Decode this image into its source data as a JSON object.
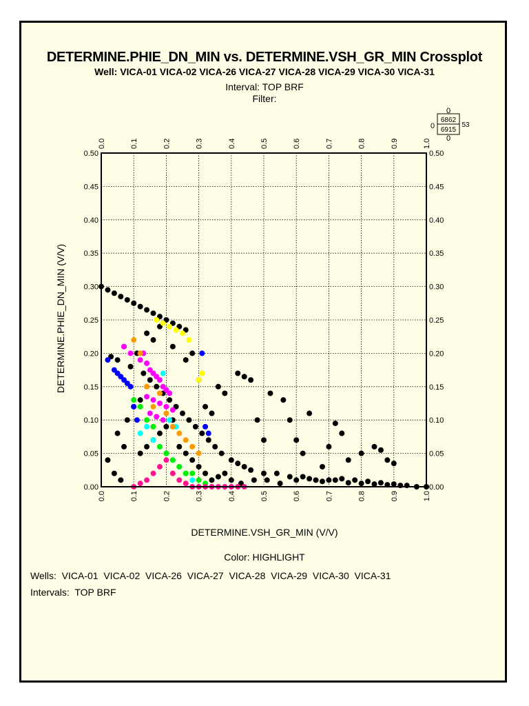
{
  "chart_data": {
    "type": "scatter",
    "title": "DETERMINE.PHIE_DN_MIN vs. DETERMINE.VSH_GR_MIN Crossplot",
    "subtitle": "Well: VICA-01 VICA-02 VICA-26 VICA-27 VICA-28 VICA-29 VICA-30 VICA-31",
    "interval_label": "Interval: TOP BRF",
    "filter_label": "Filter:",
    "xlabel": "DETERMINE.VSH_GR_MIN (V/V)",
    "ylabel": "DETERMINE.PHIE_DN_MIN (V/V)",
    "xlim": [
      0.0,
      1.0
    ],
    "ylim": [
      0.0,
      0.5
    ],
    "x_ticks": [
      "0.0",
      "0.1",
      "0.2",
      "0.3",
      "0.4",
      "0.5",
      "0.6",
      "0.7",
      "0.8",
      "0.9",
      "1.0"
    ],
    "y_ticks": [
      "0.00",
      "0.05",
      "0.10",
      "0.15",
      "0.20",
      "0.25",
      "0.30",
      "0.35",
      "0.40",
      "0.45",
      "0.50"
    ],
    "grid": true,
    "color_by": "Color: HIGHLIGHT",
    "counts_box": {
      "top": "0",
      "left": "0",
      "right": "53",
      "bottom": "0",
      "inner_top": "6862",
      "inner_bottom": "6915"
    },
    "series": [
      {
        "name": "VICA-01",
        "color": "#000000",
        "x": [
          0.0,
          0.02,
          0.04,
          0.06,
          0.08,
          0.1,
          0.12,
          0.14,
          0.16,
          0.18,
          0.2,
          0.22,
          0.24,
          0.26,
          0.03,
          0.05,
          0.07,
          0.09,
          0.11,
          0.13,
          0.15,
          0.17,
          0.19,
          0.21,
          0.23,
          0.25,
          0.27,
          0.29,
          0.31,
          0.33,
          0.35,
          0.37,
          0.4,
          0.42,
          0.44,
          0.46,
          0.5,
          0.54,
          0.58,
          0.62,
          0.66,
          0.7,
          0.74,
          0.78,
          0.82,
          0.86,
          0.9,
          0.94,
          0.97,
          1.0,
          0.12,
          0.14,
          0.16,
          0.18,
          0.2,
          0.22,
          0.24,
          0.26,
          0.28,
          0.3,
          0.32,
          0.34,
          0.36,
          0.38,
          0.4,
          0.43,
          0.47,
          0.51,
          0.55,
          0.6,
          0.64,
          0.68,
          0.72,
          0.76,
          0.8,
          0.84,
          0.88,
          0.92,
          0.42,
          0.44,
          0.46,
          0.52,
          0.56,
          0.58,
          0.64,
          0.72,
          0.74,
          0.84,
          0.86,
          0.88,
          0.9,
          0.5,
          0.6,
          0.7,
          0.8,
          0.62,
          0.76,
          0.68,
          0.48,
          0.36,
          0.38,
          0.28,
          0.3,
          0.32,
          0.34,
          0.14,
          0.16,
          0.18,
          0.22,
          0.26,
          0.08,
          0.1,
          0.12,
          0.05,
          0.07,
          0.02,
          0.04,
          0.06
        ],
        "y": [
          0.3,
          0.295,
          0.29,
          0.285,
          0.28,
          0.275,
          0.27,
          0.265,
          0.26,
          0.255,
          0.25,
          0.245,
          0.24,
          0.235,
          0.195,
          0.19,
          0.21,
          0.18,
          0.2,
          0.17,
          0.16,
          0.15,
          0.14,
          0.13,
          0.12,
          0.11,
          0.1,
          0.09,
          0.08,
          0.07,
          0.06,
          0.05,
          0.04,
          0.035,
          0.03,
          0.025,
          0.02,
          0.02,
          0.015,
          0.015,
          0.01,
          0.01,
          0.012,
          0.01,
          0.008,
          0.006,
          0.004,
          0.002,
          0.0,
          0.0,
          0.05,
          0.06,
          0.07,
          0.08,
          0.09,
          0.1,
          0.06,
          0.05,
          0.04,
          0.03,
          0.02,
          0.01,
          0.015,
          0.02,
          0.01,
          0.005,
          0.01,
          0.01,
          0.005,
          0.01,
          0.012,
          0.008,
          0.01,
          0.006,
          0.005,
          0.004,
          0.003,
          0.002,
          0.17,
          0.165,
          0.16,
          0.14,
          0.13,
          0.1,
          0.11,
          0.095,
          0.08,
          0.06,
          0.055,
          0.04,
          0.035,
          0.07,
          0.07,
          0.06,
          0.05,
          0.05,
          0.04,
          0.03,
          0.1,
          0.15,
          0.14,
          0.2,
          0.16,
          0.12,
          0.11,
          0.23,
          0.22,
          0.24,
          0.21,
          0.19,
          0.1,
          0.12,
          0.13,
          0.08,
          0.06,
          0.04,
          0.02,
          0.01
        ]
      },
      {
        "name": "VICA-02",
        "color": "#ff00ff",
        "x": [
          0.07,
          0.09,
          0.12,
          0.13,
          0.14,
          0.15,
          0.16,
          0.17,
          0.18,
          0.19,
          0.2,
          0.21,
          0.14,
          0.16,
          0.18,
          0.2,
          0.22,
          0.15,
          0.17,
          0.19
        ],
        "y": [
          0.21,
          0.2,
          0.19,
          0.2,
          0.185,
          0.175,
          0.17,
          0.165,
          0.16,
          0.15,
          0.145,
          0.14,
          0.135,
          0.13,
          0.125,
          0.12,
          0.115,
          0.11,
          0.105,
          0.1
        ]
      },
      {
        "name": "VICA-26",
        "color": "#0000ff",
        "x": [
          0.02,
          0.04,
          0.05,
          0.06,
          0.07,
          0.08,
          0.09,
          0.1,
          0.11,
          0.31,
          0.32,
          0.33
        ],
        "y": [
          0.19,
          0.175,
          0.17,
          0.165,
          0.16,
          0.155,
          0.15,
          0.12,
          0.1,
          0.2,
          0.09,
          0.08
        ]
      },
      {
        "name": "VICA-27",
        "color": "#ffff00",
        "x": [
          0.17,
          0.19,
          0.21,
          0.23,
          0.25,
          0.27,
          0.31,
          0.3
        ],
        "y": [
          0.25,
          0.245,
          0.24,
          0.235,
          0.23,
          0.22,
          0.17,
          0.16
        ]
      },
      {
        "name": "VICA-28",
        "color": "#00ffff",
        "x": [
          0.12,
          0.14,
          0.16,
          0.18,
          0.2,
          0.22,
          0.24,
          0.26,
          0.28,
          0.19,
          0.21,
          0.23
        ],
        "y": [
          0.08,
          0.09,
          0.07,
          0.06,
          0.05,
          0.04,
          0.03,
          0.02,
          0.01,
          0.17,
          0.1,
          0.09
        ]
      },
      {
        "name": "VICA-29",
        "color": "#00ee00",
        "x": [
          0.1,
          0.12,
          0.14,
          0.16,
          0.18,
          0.2,
          0.22,
          0.24,
          0.26,
          0.28,
          0.3,
          0.32
        ],
        "y": [
          0.13,
          0.12,
          0.1,
          0.09,
          0.06,
          0.05,
          0.04,
          0.03,
          0.02,
          0.02,
          0.01,
          0.005
        ]
      },
      {
        "name": "VICA-30",
        "color": "#ff1493",
        "x": [
          0.1,
          0.12,
          0.14,
          0.16,
          0.18,
          0.2,
          0.22,
          0.24,
          0.26,
          0.28,
          0.3,
          0.32,
          0.34,
          0.36,
          0.38,
          0.4,
          0.42,
          0.44
        ],
        "y": [
          0.0,
          0.005,
          0.01,
          0.02,
          0.03,
          0.04,
          0.02,
          0.01,
          0.005,
          0.0,
          0.0,
          0.0,
          0.0,
          0.0,
          0.0,
          0.0,
          0.0,
          0.0
        ]
      },
      {
        "name": "VICA-31",
        "color": "#ff9900",
        "x": [
          0.1,
          0.12,
          0.14,
          0.16,
          0.18,
          0.2,
          0.22,
          0.24,
          0.26,
          0.28,
          0.3
        ],
        "y": [
          0.22,
          0.2,
          0.15,
          0.12,
          0.14,
          0.11,
          0.09,
          0.08,
          0.07,
          0.06,
          0.05
        ]
      }
    ]
  },
  "legend": {
    "wells_label": "Wells:",
    "wells": [
      "VICA-01",
      "VICA-02",
      "VICA-26",
      "VICA-27",
      "VICA-28",
      "VICA-29",
      "VICA-30",
      "VICA-31"
    ],
    "intervals_label": "Intervals:",
    "intervals": [
      "TOP BRF"
    ]
  }
}
